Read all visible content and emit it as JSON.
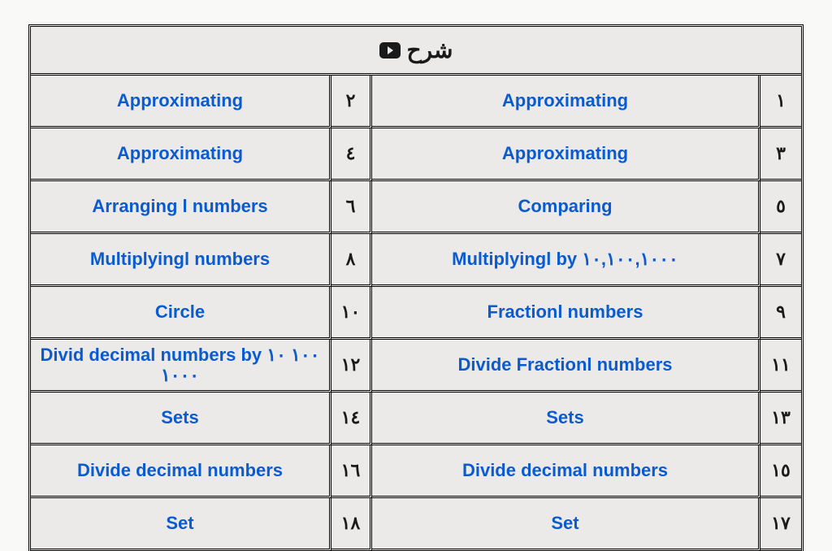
{
  "header": {
    "title": "شرح",
    "icon": "youtube-icon"
  },
  "colors": {
    "link": "#0b5bd0",
    "cell_bg": "#eceae9",
    "border": "#000000",
    "page_bg": "#f9f9f8",
    "header_text": "#1a1a1a"
  },
  "rows": [
    {
      "left_topic": "Approximating",
      "left_num": "٢",
      "right_topic": "Approximating",
      "right_num": "١"
    },
    {
      "left_topic": "Approximating",
      "left_num": "٤",
      "right_topic": "Approximating",
      "right_num": "٣"
    },
    {
      "left_topic": "Arranging l numbers",
      "left_num": "٦",
      "right_topic": "Comparing",
      "right_num": "٥"
    },
    {
      "left_topic": "Multiplyingl numbers",
      "left_num": "٨",
      "right_topic": "Multiplyingl by ١٠,١٠٠,١٠٠٠",
      "right_num": "٧"
    },
    {
      "left_topic": "Circle",
      "left_num": "١٠",
      "right_topic": "Fractionl numbers",
      "right_num": "٩"
    },
    {
      "left_topic": "Divid decimal numbers by  ١٠٠ ١٠ ١٠٠٠",
      "left_num": "١٢",
      "right_topic": "Divide Fractionl numbers",
      "right_num": "١١"
    },
    {
      "left_topic": "Sets",
      "left_num": "١٤",
      "right_topic": "Sets",
      "right_num": "١٣"
    },
    {
      "left_topic": "Divide decimal numbers",
      "left_num": "١٦",
      "right_topic": "Divide decimal numbers",
      "right_num": "١٥"
    },
    {
      "left_topic": "Set",
      "left_num": "١٨",
      "right_topic": "Set",
      "right_num": "١٧"
    }
  ]
}
